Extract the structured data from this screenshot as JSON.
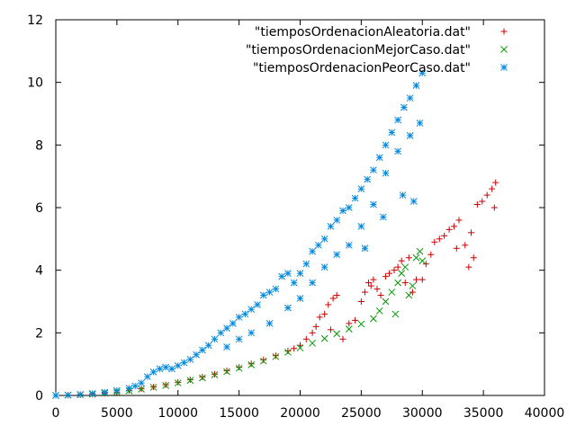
{
  "chart_data": {
    "type": "scatter",
    "title": "",
    "xlabel": "",
    "ylabel": "",
    "xlim": [
      0,
      40000
    ],
    "ylim": [
      0,
      12
    ],
    "x_ticks": [
      0,
      5000,
      10000,
      15000,
      20000,
      25000,
      30000,
      35000,
      40000
    ],
    "y_ticks": [
      0,
      2,
      4,
      6,
      8,
      10,
      12
    ],
    "x_tick_labels": [
      "0",
      "5000",
      "10000",
      "15000",
      "20000",
      "25000",
      "30000",
      "35000",
      "40000"
    ],
    "y_tick_labels": [
      "0",
      "2",
      "4",
      "6",
      "8",
      "10",
      "12"
    ],
    "grid": false,
    "legend_position": "top-right",
    "series": [
      {
        "name": "\"tiemposOrdenacionAleatoria.dat\"",
        "marker": "plus",
        "color": "#cc0000",
        "points": [
          [
            0,
            0
          ],
          [
            1000,
            0.01
          ],
          [
            2000,
            0.02
          ],
          [
            3000,
            0.04
          ],
          [
            4000,
            0.07
          ],
          [
            5000,
            0.11
          ],
          [
            6000,
            0.16
          ],
          [
            7000,
            0.21
          ],
          [
            8000,
            0.27
          ],
          [
            9000,
            0.34
          ],
          [
            10000,
            0.42
          ],
          [
            11000,
            0.5
          ],
          [
            12000,
            0.59
          ],
          [
            13000,
            0.68
          ],
          [
            14000,
            0.79
          ],
          [
            15000,
            0.9
          ],
          [
            16000,
            1.01
          ],
          [
            17000,
            1.14
          ],
          [
            18000,
            1.27
          ],
          [
            19000,
            1.42
          ],
          [
            19500,
            1.5
          ],
          [
            20000,
            1.6
          ],
          [
            20500,
            1.8
          ],
          [
            21000,
            2.0
          ],
          [
            21300,
            2.2
          ],
          [
            21600,
            2.5
          ],
          [
            22000,
            2.6
          ],
          [
            22300,
            2.9
          ],
          [
            22700,
            3.1
          ],
          [
            23000,
            3.2
          ],
          [
            22500,
            2.1
          ],
          [
            23500,
            1.8
          ],
          [
            24000,
            2.3
          ],
          [
            24500,
            2.4
          ],
          [
            25000,
            3.0
          ],
          [
            25300,
            3.3
          ],
          [
            25600,
            3.6
          ],
          [
            25800,
            3.5
          ],
          [
            26000,
            3.7
          ],
          [
            26300,
            3.4
          ],
          [
            26600,
            3.2
          ],
          [
            27000,
            3.8
          ],
          [
            27300,
            3.9
          ],
          [
            27700,
            4.0
          ],
          [
            28000,
            4.1
          ],
          [
            28300,
            4.3
          ],
          [
            28600,
            3.6
          ],
          [
            28900,
            4.4
          ],
          [
            29200,
            3.3
          ],
          [
            29500,
            3.7
          ],
          [
            30000,
            3.7
          ],
          [
            30300,
            4.2
          ],
          [
            30700,
            4.5
          ],
          [
            31000,
            4.9
          ],
          [
            31400,
            5.0
          ],
          [
            31800,
            5.1
          ],
          [
            32200,
            5.3
          ],
          [
            32600,
            5.4
          ],
          [
            33000,
            5.6
          ],
          [
            32800,
            4.7
          ],
          [
            33500,
            4.8
          ],
          [
            33800,
            4.1
          ],
          [
            34200,
            4.4
          ],
          [
            34000,
            5.2
          ],
          [
            34500,
            6.1
          ],
          [
            34900,
            6.2
          ],
          [
            35300,
            6.4
          ],
          [
            35700,
            6.6
          ],
          [
            36000,
            6.8
          ],
          [
            35900,
            6.0
          ]
        ]
      },
      {
        "name": "\"tiemposOrdenacionMejorCaso.dat\"",
        "marker": "cross",
        "color": "#009900",
        "points": [
          [
            0,
            0
          ],
          [
            1000,
            0.01
          ],
          [
            2000,
            0.02
          ],
          [
            3000,
            0.04
          ],
          [
            4000,
            0.07
          ],
          [
            5000,
            0.11
          ],
          [
            6000,
            0.15
          ],
          [
            7000,
            0.2
          ],
          [
            8000,
            0.26
          ],
          [
            9000,
            0.32
          ],
          [
            10000,
            0.4
          ],
          [
            11000,
            0.48
          ],
          [
            12000,
            0.56
          ],
          [
            13000,
            0.66
          ],
          [
            14000,
            0.76
          ],
          [
            15000,
            0.87
          ],
          [
            16000,
            0.98
          ],
          [
            17000,
            1.1
          ],
          [
            18000,
            1.24
          ],
          [
            19000,
            1.38
          ],
          [
            20000,
            1.52
          ],
          [
            21000,
            1.67
          ],
          [
            22000,
            1.82
          ],
          [
            23000,
            1.97
          ],
          [
            24000,
            2.12
          ],
          [
            25000,
            2.28
          ],
          [
            26000,
            2.45
          ],
          [
            26500,
            2.7
          ],
          [
            27000,
            3.0
          ],
          [
            27500,
            3.3
          ],
          [
            27800,
            2.6
          ],
          [
            28000,
            3.6
          ],
          [
            28300,
            3.9
          ],
          [
            28600,
            4.1
          ],
          [
            28900,
            3.2
          ],
          [
            29200,
            3.5
          ],
          [
            29500,
            4.4
          ],
          [
            29800,
            4.6
          ],
          [
            30000,
            4.3
          ]
        ]
      },
      {
        "name": "\"tiemposOrdenacionPeorCaso.dat\"",
        "marker": "star",
        "color": "#0088dd",
        "points": [
          [
            0,
            0
          ],
          [
            1000,
            0.01
          ],
          [
            2000,
            0.03
          ],
          [
            3000,
            0.06
          ],
          [
            4000,
            0.1
          ],
          [
            5000,
            0.16
          ],
          [
            6000,
            0.23
          ],
          [
            6500,
            0.3
          ],
          [
            7000,
            0.4
          ],
          [
            7500,
            0.6
          ],
          [
            8000,
            0.75
          ],
          [
            8500,
            0.85
          ],
          [
            9000,
            0.9
          ],
          [
            9500,
            0.85
          ],
          [
            10000,
            0.95
          ],
          [
            10500,
            1.05
          ],
          [
            11000,
            1.15
          ],
          [
            11500,
            1.3
          ],
          [
            12000,
            1.45
          ],
          [
            12500,
            1.6
          ],
          [
            13000,
            1.8
          ],
          [
            13500,
            2.0
          ],
          [
            14000,
            2.15
          ],
          [
            14500,
            2.3
          ],
          [
            15000,
            2.5
          ],
          [
            15500,
            2.6
          ],
          [
            16000,
            2.75
          ],
          [
            16500,
            2.9
          ],
          [
            17000,
            3.2
          ],
          [
            17500,
            3.3
          ],
          [
            18000,
            3.4
          ],
          [
            18500,
            3.8
          ],
          [
            19000,
            3.9
          ],
          [
            19500,
            3.6
          ],
          [
            20000,
            3.9
          ],
          [
            20500,
            4.2
          ],
          [
            21000,
            4.6
          ],
          [
            21500,
            4.8
          ],
          [
            22000,
            5.0
          ],
          [
            22500,
            5.4
          ],
          [
            23000,
            5.6
          ],
          [
            23500,
            5.9
          ],
          [
            24000,
            6.0
          ],
          [
            24500,
            6.3
          ],
          [
            25000,
            6.6
          ],
          [
            25500,
            6.9
          ],
          [
            26000,
            7.2
          ],
          [
            26500,
            7.6
          ],
          [
            27000,
            8.0
          ],
          [
            27500,
            8.4
          ],
          [
            28000,
            8.8
          ],
          [
            28500,
            9.2
          ],
          [
            29000,
            9.5
          ],
          [
            29500,
            9.9
          ],
          [
            30000,
            10.3
          ],
          [
            29800,
            8.7
          ],
          [
            29000,
            8.3
          ],
          [
            28000,
            7.8
          ],
          [
            27000,
            7.1
          ],
          [
            26000,
            6.1
          ],
          [
            25000,
            5.4
          ],
          [
            24000,
            4.8
          ],
          [
            23000,
            4.5
          ],
          [
            22000,
            4.1
          ],
          [
            21000,
            3.6
          ],
          [
            20000,
            3.1
          ],
          [
            19000,
            2.8
          ],
          [
            17500,
            2.3
          ],
          [
            16000,
            2.0
          ],
          [
            15000,
            1.8
          ],
          [
            14000,
            1.55
          ],
          [
            29300,
            6.2
          ],
          [
            28400,
            6.4
          ],
          [
            26800,
            5.7
          ],
          [
            25300,
            4.7
          ]
        ]
      }
    ]
  }
}
